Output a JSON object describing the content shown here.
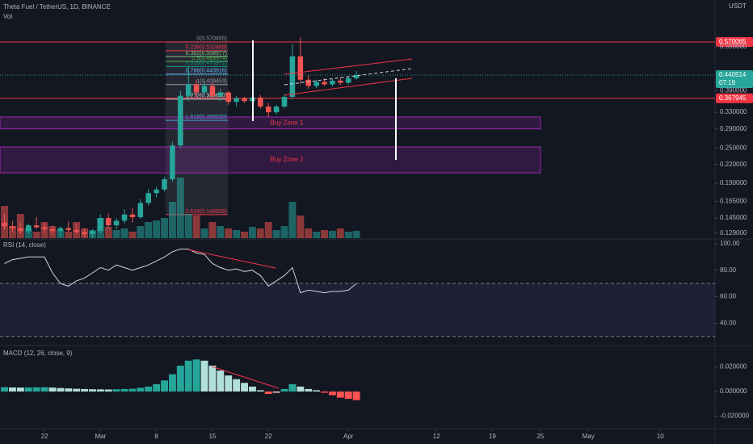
{
  "chart_data": [
    {
      "type": "candlestick",
      "title": "Theta Fuel / TetherUS, 1D, BINANCE",
      "volume_label": "Vol",
      "axis_unit": "USDT",
      "log_scale": true,
      "x": [
        -5,
        -4,
        -3,
        -2,
        -1,
        0,
        1,
        2,
        3,
        4,
        5,
        6,
        7,
        8,
        9,
        10,
        11,
        12,
        13,
        14,
        15,
        16,
        17,
        18,
        19,
        20,
        21,
        22,
        23,
        24,
        25,
        26,
        27,
        28,
        29,
        30,
        31,
        32,
        33,
        34,
        35,
        36,
        37,
        38,
        39
      ],
      "xlim": [
        -5.56,
        83.84
      ],
      "ylim": [
        0.124,
        0.79
      ],
      "yticks": [
        {
          "value": 0.55,
          "label": "0.550000"
        },
        {
          "value": 0.39,
          "label": "0.390000"
        },
        {
          "value": 0.33,
          "label": "0.330000"
        },
        {
          "value": 0.29,
          "label": "0.290000"
        },
        {
          "value": 0.25,
          "label": "0.250000"
        },
        {
          "value": 0.22,
          "label": "0.220000"
        },
        {
          "value": 0.19,
          "label": "0.190000"
        },
        {
          "value": 0.165,
          "label": "0.165000"
        },
        {
          "value": 0.145,
          "label": "0.145000"
        },
        {
          "value": 0.129,
          "label": "0.129000"
        }
      ],
      "up_color": "#26a69a",
      "down_color": "#ef5350",
      "ohlc": [
        [
          0.14,
          0.15,
          0.132,
          0.136
        ],
        [
          0.136,
          0.142,
          0.13,
          0.134
        ],
        [
          0.134,
          0.14,
          0.128,
          0.131
        ],
        [
          0.131,
          0.139,
          0.128,
          0.137
        ],
        [
          0.137,
          0.146,
          0.133,
          0.135
        ],
        [
          0.135,
          0.14,
          0.129,
          0.133
        ],
        [
          0.133,
          0.137,
          0.127,
          0.131
        ],
        [
          0.131,
          0.136,
          0.126,
          0.134
        ],
        [
          0.134,
          0.141,
          0.13,
          0.132
        ],
        [
          0.132,
          0.138,
          0.128,
          0.13
        ],
        [
          0.13,
          0.134,
          0.125,
          0.128
        ],
        [
          0.128,
          0.133,
          0.124,
          0.131
        ],
        [
          0.131,
          0.149,
          0.129,
          0.145
        ],
        [
          0.145,
          0.15,
          0.134,
          0.137
        ],
        [
          0.137,
          0.145,
          0.133,
          0.142
        ],
        [
          0.142,
          0.155,
          0.139,
          0.149
        ],
        [
          0.149,
          0.157,
          0.14,
          0.146
        ],
        [
          0.146,
          0.168,
          0.144,
          0.163
        ],
        [
          0.163,
          0.182,
          0.16,
          0.176
        ],
        [
          0.176,
          0.185,
          0.17,
          0.181
        ],
        [
          0.181,
          0.2,
          0.178,
          0.196
        ],
        [
          0.196,
          0.262,
          0.192,
          0.255
        ],
        [
          0.255,
          0.39,
          0.25,
          0.375
        ],
        [
          0.375,
          0.47,
          0.36,
          0.41
        ],
        [
          0.41,
          0.425,
          0.37,
          0.385
        ],
        [
          0.385,
          0.42,
          0.375,
          0.405
        ],
        [
          0.405,
          0.415,
          0.365,
          0.375
        ],
        [
          0.375,
          0.395,
          0.36,
          0.385
        ],
        [
          0.385,
          0.39,
          0.35,
          0.358
        ],
        [
          0.358,
          0.375,
          0.345,
          0.368
        ],
        [
          0.368,
          0.372,
          0.355,
          0.36
        ],
        [
          0.36,
          0.375,
          0.352,
          0.37
        ],
        [
          0.37,
          0.378,
          0.34,
          0.345
        ],
        [
          0.345,
          0.355,
          0.318,
          0.33
        ],
        [
          0.33,
          0.35,
          0.325,
          0.345
        ],
        [
          0.345,
          0.38,
          0.34,
          0.372
        ],
        [
          0.372,
          0.56,
          0.365,
          0.51
        ],
        [
          0.51,
          0.59,
          0.41,
          0.425
        ],
        [
          0.425,
          0.44,
          0.395,
          0.405
        ],
        [
          0.405,
          0.425,
          0.398,
          0.418
        ],
        [
          0.418,
          0.43,
          0.405,
          0.41
        ],
        [
          0.41,
          0.428,
          0.404,
          0.422
        ],
        [
          0.422,
          0.432,
          0.408,
          0.415
        ],
        [
          0.415,
          0.438,
          0.41,
          0.43
        ],
        [
          0.43,
          0.455,
          0.425,
          0.440514
        ]
      ],
      "volume": [
        40,
        15,
        30,
        12,
        8,
        20,
        15,
        10,
        8,
        20,
        12,
        10,
        25,
        14,
        10,
        12,
        8,
        15,
        20,
        22,
        25,
        45,
        75,
        30,
        28,
        12,
        20,
        15,
        12,
        10,
        8,
        14,
        12,
        20,
        10,
        15,
        45,
        28,
        12,
        8,
        10,
        9,
        12,
        8,
        9
      ],
      "price_lines": [
        0.570065,
        0.367945
      ],
      "price_line_color": "#f23645",
      "last_price": 0.440514,
      "countdown": "07:19",
      "fib": [
        {
          "label": "0(0.570495)",
          "price": 0.570495,
          "color": "#9598a1"
        },
        {
          "label": "0.236(0.532489)",
          "price": 0.532489,
          "color": "#f23645"
        },
        {
          "label": "0.382(0.508977)",
          "price": 0.508977,
          "color": "#81c784"
        },
        {
          "label": "0.5(0.489974)",
          "price": 0.489974,
          "color": "#4caf50"
        },
        {
          "label": "0.618(0.470971)",
          "price": 0.470971,
          "color": "#089981"
        },
        {
          "label": "0.786(0.443916)",
          "price": 0.443916,
          "color": "#64b5f6"
        },
        {
          "label": "1(0.409453)",
          "price": 0.409453,
          "color": "#9598a1"
        },
        {
          "label": "1.272(0.365650)",
          "price": 0.36565,
          "color": "#e0e0e0"
        },
        {
          "label": "1.618(0.309930)",
          "price": 0.30993,
          "color": "#26c6da"
        },
        {
          "label": "2.618(0.148839)",
          "price": 0.148839,
          "color": "#f23645"
        }
      ],
      "zones": [
        {
          "label": "Buy Zone 1",
          "top": 0.318,
          "bottom": 0.29
        },
        {
          "label": "Buy Zone 2",
          "top": 0.252,
          "bottom": 0.206
        }
      ]
    },
    {
      "type": "line",
      "title": "RSI (14, close)",
      "x": [
        -5,
        -4,
        -3,
        -2,
        -1,
        0,
        1,
        2,
        3,
        4,
        5,
        6,
        7,
        8,
        9,
        10,
        11,
        12,
        13,
        14,
        15,
        16,
        17,
        18,
        19,
        20,
        21,
        22,
        23,
        24,
        25,
        26,
        27,
        28,
        29,
        30,
        31,
        32,
        33,
        34,
        35,
        36,
        37,
        38,
        39
      ],
      "xlim": [
        -5.56,
        83.84
      ],
      "values": [
        85,
        88,
        89,
        90,
        90,
        90,
        78,
        70,
        68,
        72,
        74,
        78,
        82,
        80,
        84,
        82,
        80,
        82,
        84,
        87,
        90,
        94,
        96,
        96,
        93,
        92,
        85,
        82,
        80,
        81,
        79,
        80,
        76,
        68,
        72,
        76,
        82,
        63,
        65,
        64,
        63,
        64,
        64,
        65,
        70
      ],
      "color": "#d1d4dc",
      "ylim": [
        25,
        103
      ],
      "yticks": [
        {
          "value": 100,
          "label": "100.00"
        },
        {
          "value": 80,
          "label": "80.00"
        },
        {
          "value": 60,
          "label": "60.00"
        },
        {
          "value": 40,
          "label": "40.00"
        }
      ],
      "band": [
        30,
        70
      ]
    },
    {
      "type": "bar",
      "title": "MACD (12, 26, close, 9)",
      "x": [
        -5,
        -4,
        -3,
        -2,
        -1,
        0,
        1,
        2,
        3,
        4,
        5,
        6,
        7,
        8,
        9,
        10,
        11,
        12,
        13,
        14,
        15,
        16,
        17,
        18,
        19,
        20,
        21,
        22,
        23,
        24,
        25,
        26,
        27,
        28,
        29,
        30,
        31,
        32,
        33,
        34,
        35,
        36,
        37,
        38,
        39
      ],
      "xlim": [
        -5.56,
        83.84
      ],
      "values": [
        0.0035,
        0.0033,
        0.0032,
        0.0033,
        0.0034,
        0.0035,
        0.0032,
        0.0028,
        0.0025,
        0.0022,
        0.002,
        0.0018,
        0.0017,
        0.0016,
        0.0018,
        0.002,
        0.0022,
        0.003,
        0.004,
        0.006,
        0.009,
        0.014,
        0.021,
        0.025,
        0.026,
        0.025,
        0.021,
        0.017,
        0.013,
        0.01,
        0.007,
        0.004,
        0.001,
        -0.002,
        -0.001,
        0.002,
        0.006,
        0.004,
        0.002,
        0.001,
        -0.001,
        -0.003,
        -0.005,
        -0.006,
        -0.007
      ],
      "ylim": [
        -0.0295,
        0.036
      ],
      "yticks": [
        {
          "value": 0.02,
          "label": "0.020000"
        },
        {
          "value": 0,
          "label": "0.000000"
        },
        {
          "value": -0.02,
          "label": "-0.020000"
        }
      ],
      "colors": {
        "up_rising": "#26a69a",
        "up_falling": "#b2dfdb",
        "down_falling": "#ff5252",
        "down_rising": "#ffcdd2"
      },
      "xticks": [
        {
          "value": 0,
          "label": "22"
        },
        {
          "value": 7,
          "label": "Mar"
        },
        {
          "value": 14,
          "label": "8"
        },
        {
          "value": 21,
          "label": "15"
        },
        {
          "value": 28,
          "label": "22"
        },
        {
          "value": 38,
          "label": "Apr"
        },
        {
          "value": 49,
          "label": "12"
        },
        {
          "value": 56,
          "label": "19"
        },
        {
          "value": 62,
          "label": "25"
        },
        {
          "value": 68,
          "label": "May"
        },
        {
          "value": 77,
          "label": "10"
        }
      ]
    }
  ]
}
